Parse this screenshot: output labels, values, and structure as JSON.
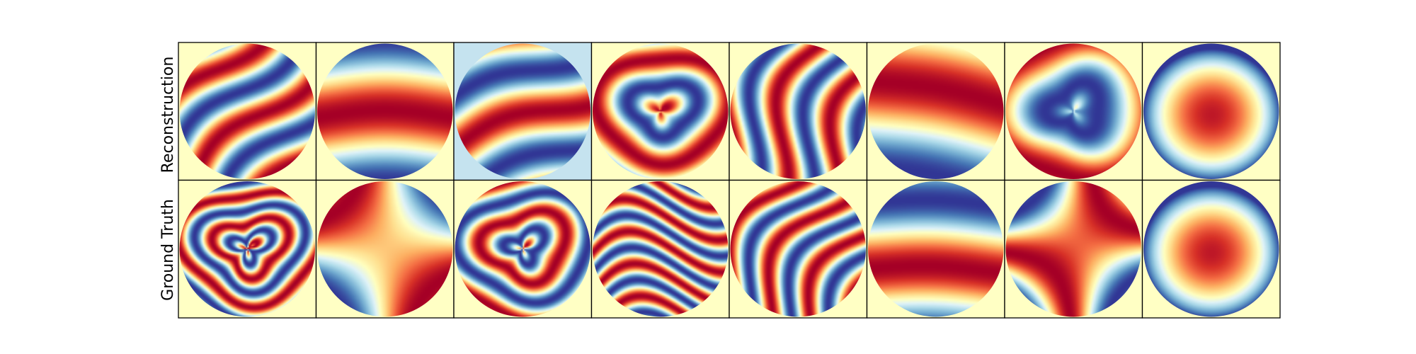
{
  "rows": [
    {
      "label": "Reconstruction",
      "panels": [
        {
          "name": "rec-1",
          "bg": "#ffffc4",
          "type": "stripes",
          "angle": 45,
          "freq": 2.2,
          "phase": 0.3,
          "wobble": 0.6
        },
        {
          "name": "rec-2",
          "bg": "#ffffc4",
          "type": "bands",
          "angle": 90,
          "freq": 1.2,
          "phase": 1.4,
          "wobble": 0.3
        },
        {
          "name": "rec-3",
          "bg": "#c5e3ef",
          "type": "stripes",
          "angle": 70,
          "freq": 1.6,
          "phase": 0.9,
          "wobble": 0.4
        },
        {
          "name": "rec-4",
          "bg": "#ffffc4",
          "type": "rings",
          "angle": 0,
          "freq": 2.0,
          "phase": 0.2,
          "wobble": 0.5
        },
        {
          "name": "rec-5",
          "bg": "#ffffc4",
          "type": "stripes",
          "angle": 20,
          "freq": 2.4,
          "phase": 2.1,
          "wobble": 0.9
        },
        {
          "name": "rec-6",
          "bg": "#ffffc4",
          "type": "bands",
          "angle": 100,
          "freq": 1.0,
          "phase": 2.3,
          "wobble": 0.2
        },
        {
          "name": "rec-7",
          "bg": "#ffffc4",
          "type": "rings",
          "angle": 0,
          "freq": 1.1,
          "phase": 1.8,
          "wobble": 0.6
        },
        {
          "name": "rec-8",
          "bg": "#ffffc4",
          "type": "dome",
          "angle": 0,
          "freq": 1.0,
          "phase": 0.0,
          "wobble": 0.2
        }
      ]
    },
    {
      "label": "Ground Truth",
      "panels": [
        {
          "name": "gt-1",
          "bg": "#ffffc4",
          "type": "rings",
          "angle": 0,
          "freq": 3.8,
          "phase": 0.4,
          "wobble": 0.8
        },
        {
          "name": "gt-2",
          "bg": "#ffffc4",
          "type": "saddle",
          "angle": 0,
          "freq": 1.1,
          "phase": 0.3,
          "wobble": 0.2
        },
        {
          "name": "gt-3",
          "bg": "#ffffc4",
          "type": "rings",
          "angle": 0,
          "freq": 2.8,
          "phase": 1.0,
          "wobble": 0.7
        },
        {
          "name": "gt-4",
          "bg": "#ffffc4",
          "type": "stripes",
          "angle": 80,
          "freq": 4.2,
          "phase": 0.5,
          "wobble": 1.2
        },
        {
          "name": "gt-5",
          "bg": "#ffffc4",
          "type": "stripes",
          "angle": 30,
          "freq": 3.0,
          "phase": 1.3,
          "wobble": 1.0
        },
        {
          "name": "gt-6",
          "bg": "#ffffc4",
          "type": "bands",
          "angle": 92,
          "freq": 1.3,
          "phase": 0.6,
          "wobble": 0.2
        },
        {
          "name": "gt-7",
          "bg": "#ffffc4",
          "type": "saddle",
          "angle": 0,
          "freq": 1.8,
          "phase": 2.4,
          "wobble": 0.6
        },
        {
          "name": "gt-8",
          "bg": "#ffffc4",
          "type": "dome",
          "angle": 0,
          "freq": 1.3,
          "phase": 0.0,
          "wobble": 0.1
        }
      ]
    }
  ],
  "colormap": [
    "#313695",
    "#4575b4",
    "#74add1",
    "#abd9e9",
    "#e0f3f8",
    "#ffffbf",
    "#fee090",
    "#fdae61",
    "#f46d43",
    "#d73027",
    "#a50026"
  ]
}
